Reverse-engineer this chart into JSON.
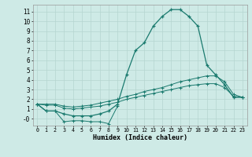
{
  "xlabel": "Humidex (Indice chaleur)",
  "x": [
    0,
    1,
    2,
    3,
    4,
    5,
    6,
    7,
    8,
    9,
    10,
    11,
    12,
    13,
    14,
    15,
    16,
    17,
    18,
    19,
    20,
    21,
    22,
    23
  ],
  "main_line": [
    1.5,
    0.8,
    0.8,
    0.5,
    0.3,
    0.3,
    0.3,
    0.5,
    0.8,
    1.5,
    4.5,
    7.0,
    7.8,
    9.5,
    10.5,
    11.2,
    11.2,
    10.5,
    9.5,
    5.5,
    4.5,
    3.5,
    2.2,
    2.2
  ],
  "upper_line": [
    1.5,
    1.5,
    1.5,
    1.3,
    1.2,
    1.3,
    1.4,
    1.6,
    1.8,
    2.0,
    2.3,
    2.5,
    2.8,
    3.0,
    3.2,
    3.5,
    3.8,
    4.0,
    4.2,
    4.4,
    4.4,
    3.8,
    2.5,
    2.2
  ],
  "middle_line": [
    1.5,
    1.4,
    1.4,
    1.1,
    1.0,
    1.1,
    1.2,
    1.3,
    1.5,
    1.7,
    2.0,
    2.2,
    2.4,
    2.6,
    2.8,
    3.0,
    3.2,
    3.4,
    3.5,
    3.6,
    3.6,
    3.2,
    2.3,
    2.2
  ],
  "zigzag_x": [
    0,
    1,
    2,
    3,
    4,
    5,
    6,
    7,
    8,
    9
  ],
  "zigzag_y": [
    1.5,
    0.8,
    0.8,
    -0.3,
    -0.2,
    -0.2,
    -0.3,
    -0.3,
    -0.5,
    1.3
  ],
  "line_color": "#1a7a6e",
  "bg_color": "#ceeae6",
  "grid_color": "#b5d5d0",
  "ylim": [
    -0.7,
    11.7
  ],
  "xlim": [
    -0.5,
    23.5
  ],
  "yticks": [
    0,
    1,
    2,
    3,
    4,
    5,
    6,
    7,
    8,
    9,
    10,
    11
  ],
  "ytick_labels": [
    "-0",
    "1",
    "2",
    "3",
    "4",
    "5",
    "6",
    "7",
    "8",
    "9",
    "10",
    "11"
  ],
  "xticks": [
    0,
    1,
    2,
    3,
    4,
    5,
    6,
    7,
    8,
    9,
    10,
    11,
    12,
    13,
    14,
    15,
    16,
    17,
    18,
    19,
    20,
    21,
    22,
    23
  ]
}
